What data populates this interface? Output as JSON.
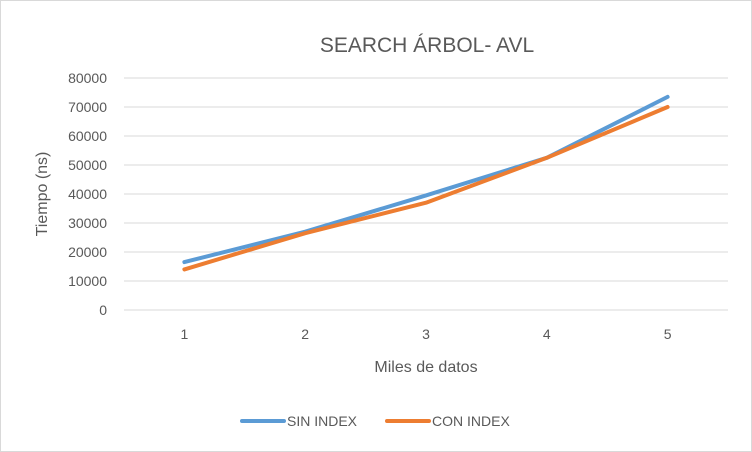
{
  "chart_data": {
    "type": "line",
    "title": "SEARCH ÁRBOL- AVL",
    "xlabel": "Miles de datos",
    "ylabel": "Tiempo (ns)",
    "categories": [
      "1",
      "2",
      "3",
      "4",
      "5"
    ],
    "yticks": [
      "0",
      "10000",
      "20000",
      "30000",
      "40000",
      "50000",
      "60000",
      "70000",
      "80000"
    ],
    "ylim": [
      0,
      80000
    ],
    "grid": true,
    "legend_position": "bottom",
    "series": [
      {
        "name": "SIN INDEX",
        "color": "#5b9bd5",
        "values": [
          16500,
          27000,
          39500,
          52500,
          73500
        ]
      },
      {
        "name": "CON INDEX",
        "color": "#ed7d31",
        "values": [
          14000,
          26500,
          37000,
          52500,
          70000
        ]
      }
    ]
  }
}
